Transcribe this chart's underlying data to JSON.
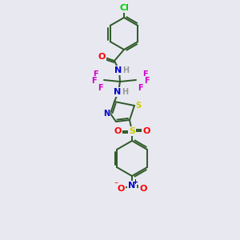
{
  "bg_color": "#e8e8f0",
  "bond_color": "#2d5a27",
  "atom_colors": {
    "O": "#ff0000",
    "N": "#0000cc",
    "F": "#cc00cc",
    "S": "#cccc00",
    "Cl": "#00cc00",
    "H": "#999999",
    "C": "#2d5a27"
  },
  "figsize": [
    3.0,
    3.0
  ],
  "dpi": 100
}
